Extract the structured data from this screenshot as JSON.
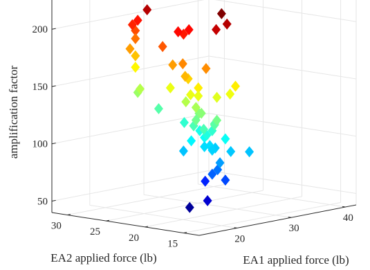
{
  "chart_data": {
    "type": "scatter3d",
    "marker": "diamond",
    "colormap": "jet",
    "color_by": "z",
    "color_range": [
      35,
      225
    ],
    "grid": true,
    "x_axis": {
      "label": "EA1 applied force (lb)",
      "range": [
        13,
        42
      ],
      "ticks": [
        "20",
        "30",
        "40"
      ]
    },
    "y_axis": {
      "label": "EA2 applied force (lb)",
      "range": [
        13,
        32
      ],
      "ticks": [
        "15",
        "20",
        "25",
        "30"
      ]
    },
    "z_axis": {
      "label": "amplification factor",
      "range": [
        40,
        240
      ],
      "ticks": [
        "50",
        "100",
        "150",
        "200"
      ]
    },
    "points": [
      {
        "x": 20,
        "y": 15,
        "z": 225
      },
      {
        "x": 21,
        "y": 15,
        "z": 215
      },
      {
        "x": 19,
        "y": 15,
        "z": 212
      },
      {
        "x": 22,
        "y": 26,
        "z": 215
      },
      {
        "x": 22,
        "y": 22,
        "z": 200
      },
      {
        "x": 23,
        "y": 22,
        "z": 197
      },
      {
        "x": 22,
        "y": 24,
        "z": 185
      },
      {
        "x": 20,
        "y": 17,
        "z": 175
      },
      {
        "x": 24,
        "y": 22,
        "z": 200
      },
      {
        "x": 26,
        "y": 30,
        "z": 198
      },
      {
        "x": 25,
        "y": 30,
        "z": 195
      },
      {
        "x": 27,
        "y": 31,
        "z": 187
      },
      {
        "x": 27,
        "y": 31,
        "z": 180
      },
      {
        "x": 26,
        "y": 31,
        "z": 172
      },
      {
        "x": 27,
        "y": 31,
        "z": 165
      },
      {
        "x": 27,
        "y": 31,
        "z": 155
      },
      {
        "x": 21,
        "y": 22,
        "z": 172
      },
      {
        "x": 20,
        "y": 20,
        "z": 176
      },
      {
        "x": 19,
        "y": 19,
        "z": 167
      },
      {
        "x": 21,
        "y": 20,
        "z": 162
      },
      {
        "x": 20,
        "y": 18,
        "z": 157
      },
      {
        "x": 24,
        "y": 16,
        "z": 157
      },
      {
        "x": 23,
        "y": 16,
        "z": 151
      },
      {
        "x": 20,
        "y": 19,
        "z": 150
      },
      {
        "x": 22,
        "y": 17,
        "z": 148
      },
      {
        "x": 20,
        "y": 18,
        "z": 150
      },
      {
        "x": 22,
        "y": 23,
        "z": 150
      },
      {
        "x": 22,
        "y": 21,
        "z": 140
      },
      {
        "x": 25,
        "y": 29,
        "z": 140
      },
      {
        "x": 26,
        "y": 30,
        "z": 135
      },
      {
        "x": 21,
        "y": 19,
        "z": 138
      },
      {
        "x": 22,
        "y": 19,
        "z": 132
      },
      {
        "x": 23,
        "y": 20,
        "z": 130
      },
      {
        "x": 22,
        "y": 17,
        "z": 128
      },
      {
        "x": 21,
        "y": 19,
        "z": 127
      },
      {
        "x": 23,
        "y": 18,
        "z": 122
      },
      {
        "x": 22,
        "y": 20,
        "z": 120
      },
      {
        "x": 23,
        "y": 18,
        "z": 123
      },
      {
        "x": 21,
        "y": 18,
        "z": 120
      },
      {
        "x": 24,
        "y": 19,
        "z": 115
      },
      {
        "x": 27,
        "y": 28,
        "z": 122
      },
      {
        "x": 23,
        "y": 19,
        "z": 112
      },
      {
        "x": 26,
        "y": 24,
        "z": 115
      },
      {
        "x": 24,
        "y": 20,
        "z": 108
      },
      {
        "x": 25,
        "y": 18,
        "z": 108
      },
      {
        "x": 26,
        "y": 22,
        "z": 110
      },
      {
        "x": 23,
        "y": 21,
        "z": 105
      },
      {
        "x": 24,
        "y": 19,
        "z": 98
      },
      {
        "x": 23,
        "y": 22,
        "z": 95
      },
      {
        "x": 24,
        "y": 20,
        "z": 100
      },
      {
        "x": 25,
        "y": 20,
        "z": 100
      },
      {
        "x": 26,
        "y": 20,
        "z": 97
      },
      {
        "x": 26,
        "y": 18,
        "z": 96
      },
      {
        "x": 24,
        "y": 18,
        "z": 88
      },
      {
        "x": 28,
        "y": 17,
        "z": 95
      },
      {
        "x": 25,
        "y": 19,
        "z": 80
      },
      {
        "x": 24,
        "y": 19,
        "z": 77
      },
      {
        "x": 25,
        "y": 18,
        "z": 72
      },
      {
        "x": 27,
        "y": 22,
        "z": 65
      },
      {
        "x": 26,
        "y": 21,
        "z": 50
      },
      {
        "x": 27,
        "y": 24,
        "z": 40
      }
    ]
  }
}
